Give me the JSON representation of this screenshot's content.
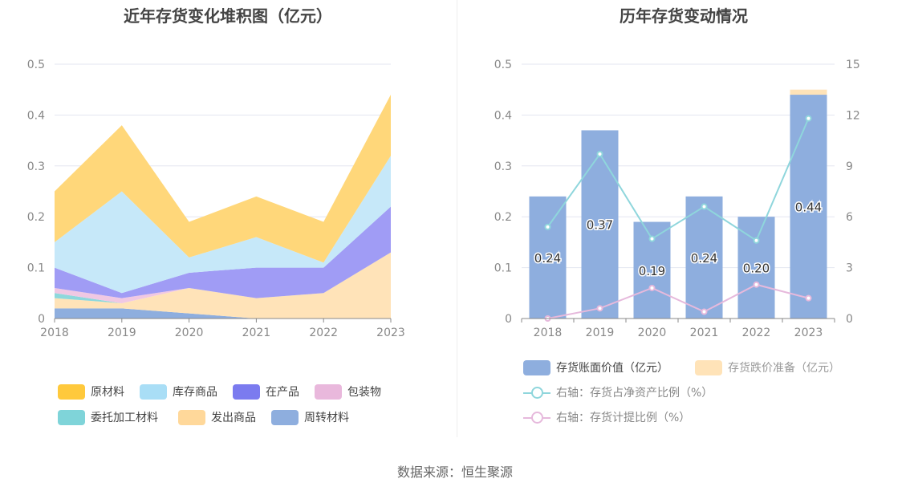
{
  "source_text": "数据来源：恒生聚源",
  "chart_data": [
    {
      "type": "area",
      "stacked": true,
      "title": "近年存货变化堆积图（亿元）",
      "x": [
        "2018",
        "2019",
        "2020",
        "2021",
        "2022",
        "2023"
      ],
      "ylim": [
        0,
        0.5
      ],
      "yticks": [
        "0",
        "0.1",
        "0.2",
        "0.3",
        "0.4",
        "0.5"
      ],
      "grid": true,
      "legend_position": "bottom",
      "series": [
        {
          "name": "周转材料",
          "color": "#8eaede",
          "values": [
            0.02,
            0.02,
            0.01,
            0.0,
            0.0,
            0.0
          ]
        },
        {
          "name": "发出商品",
          "color": "#ffe3b8",
          "values": [
            0.02,
            0.01,
            0.05,
            0.04,
            0.05,
            0.13
          ]
        },
        {
          "name": "委托加工材料",
          "color": "#8ed8dc",
          "values": [
            0.01,
            0.0,
            0.0,
            0.0,
            0.0,
            0.0
          ]
        },
        {
          "name": "包装物",
          "color": "#f0c8e3",
          "values": [
            0.01,
            0.01,
            0.0,
            0.0,
            0.0,
            0.0
          ]
        },
        {
          "name": "在产品",
          "color": "#a09cf5",
          "values": [
            0.04,
            0.01,
            0.03,
            0.06,
            0.05,
            0.09
          ]
        },
        {
          "name": "库存商品",
          "color": "#c6e8f9",
          "values": [
            0.05,
            0.2,
            0.03,
            0.06,
            0.01,
            0.1
          ]
        },
        {
          "name": "原材料",
          "color": "#ffd77a",
          "values": [
            0.1,
            0.13,
            0.07,
            0.08,
            0.08,
            0.12
          ]
        }
      ],
      "legend": [
        {
          "name": "原材料",
          "color": "#ffc93c"
        },
        {
          "name": "库存商品",
          "color": "#a9def6"
        },
        {
          "name": "在产品",
          "color": "#7b7bef"
        },
        {
          "name": "包装物",
          "color": "#e9b8dc"
        },
        {
          "name": "委托加工材料",
          "color": "#7fd4d9"
        },
        {
          "name": "发出商品",
          "color": "#ffd89a"
        },
        {
          "name": "周转材料",
          "color": "#8eaede"
        }
      ]
    },
    {
      "type": "bar",
      "title": "历年存货变动情况",
      "categories": [
        "2018",
        "2019",
        "2020",
        "2021",
        "2022",
        "2023"
      ],
      "ylim": [
        0,
        0.5
      ],
      "yticks": [
        "0",
        "0.1",
        "0.2",
        "0.3",
        "0.4",
        "0.5"
      ],
      "y2lim": [
        0,
        15
      ],
      "y2ticks": [
        "0",
        "3",
        "6",
        "9",
        "12",
        "15"
      ],
      "grid": true,
      "legend_position": "bottom",
      "series": [
        {
          "name": "存货账面价值（亿元）",
          "color": "#8eaede",
          "axis": "left",
          "values": [
            0.24,
            0.37,
            0.19,
            0.24,
            0.2,
            0.44
          ],
          "labels": [
            "0.24",
            "0.37",
            "0.19",
            "0.24",
            "0.20",
            "0.44"
          ]
        },
        {
          "name": "存货跌价准备（亿元）",
          "color": "#ffe3b8",
          "axis": "left",
          "values": [
            0.0,
            0.0,
            0.0,
            0.0,
            0.0,
            0.01
          ]
        },
        {
          "name": "右轴：存货占净资产比例（%）",
          "type": "line",
          "color": "#8fd6dc",
          "axis": "right",
          "values": [
            5.4,
            9.7,
            4.7,
            6.6,
            4.6,
            11.8
          ]
        },
        {
          "name": "右轴：存货计提比例（%）",
          "type": "line",
          "color": "#e6b9dc",
          "axis": "right",
          "values": [
            0.0,
            0.6,
            1.8,
            0.4,
            2.0,
            1.2
          ]
        }
      ]
    }
  ]
}
